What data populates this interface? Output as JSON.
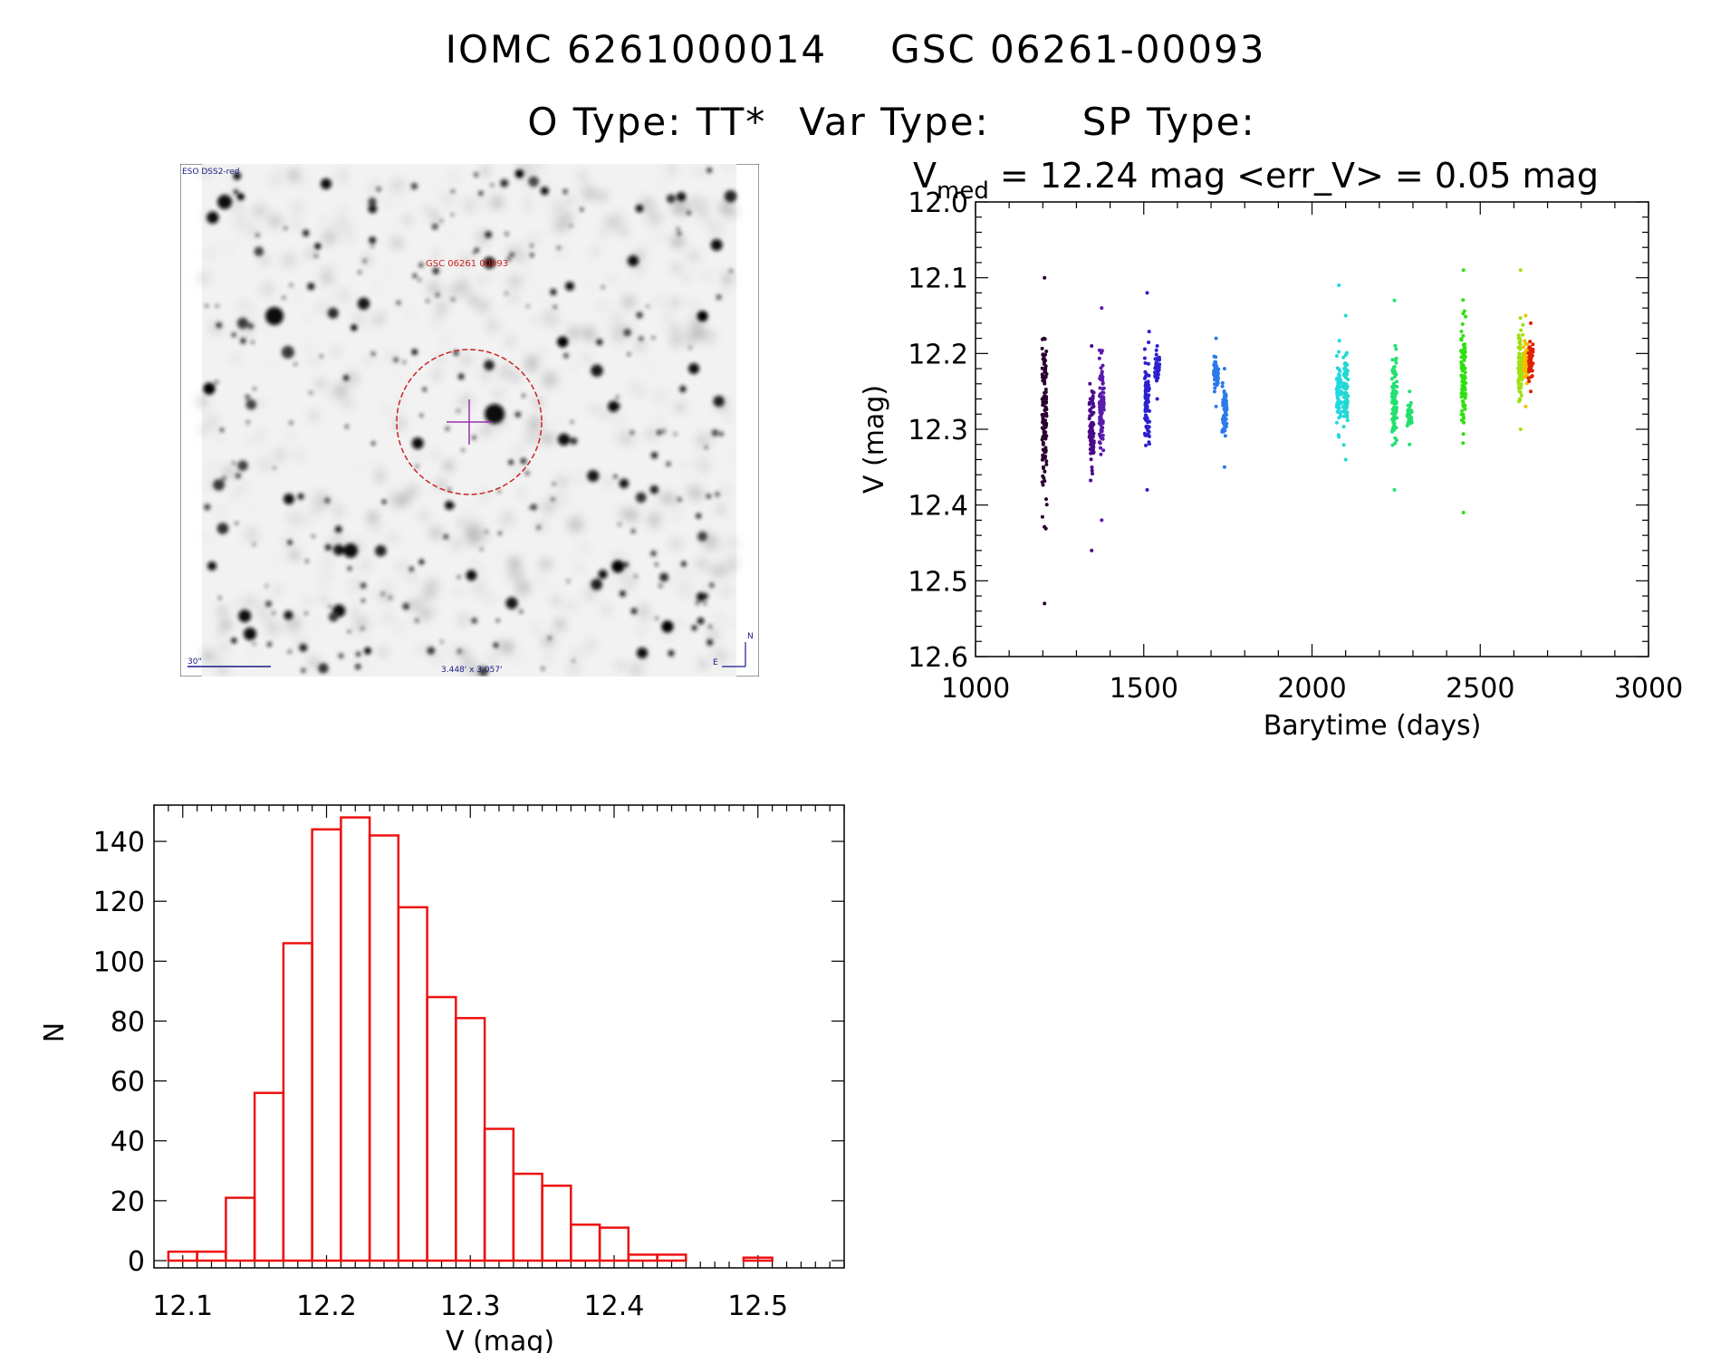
{
  "header": {
    "id1": "IOMC 6261000014",
    "id2": "GSC 06261-00093",
    "otype_label": "O Type: TT*",
    "vartype_label": "Var Type:",
    "sptype_label": "SP Type:"
  },
  "finder_chart": {
    "survey_label": "ESO DSS2-red",
    "target_label": "GSC 06261 00093",
    "scale_label": "30\"",
    "fov_label": "3.448' x 3.057'",
    "north_label": "N",
    "east_label": "E",
    "circle_color": "#cc2222",
    "cross_color": "#9933aa"
  },
  "chart_data": [
    {
      "type": "scatter",
      "title_prefix": "V",
      "title_sub": "med",
      "title_rest": " = 12.24 mag <err_V> = 0.05 mag",
      "xlabel": "Barytime (days)",
      "ylabel": "V (mag)",
      "xlim": [
        1000,
        3000
      ],
      "ylim": [
        12.6,
        12.0
      ],
      "y_inverted": true,
      "xticks": [
        "1000",
        "1500",
        "2000",
        "2500",
        "3000"
      ],
      "yticks": [
        "12.0",
        "12.1",
        "12.2",
        "12.3",
        "12.4",
        "12.5",
        "12.6"
      ],
      "clusters": [
        {
          "x": 1205,
          "color": "#2a0030",
          "ymin": 12.1,
          "ymax": 12.53,
          "center": 12.29
        },
        {
          "x": 1345,
          "color": "#4a0a8a",
          "ymin": 12.19,
          "ymax": 12.46,
          "center": 12.3
        },
        {
          "x": 1375,
          "color": "#5b1aaa",
          "ymin": 12.14,
          "ymax": 12.42,
          "center": 12.27
        },
        {
          "x": 1510,
          "color": "#2a20d0",
          "ymin": 12.12,
          "ymax": 12.38,
          "center": 12.26
        },
        {
          "x": 1540,
          "color": "#2a20d0",
          "ymin": 12.19,
          "ymax": 12.26,
          "center": 12.22
        },
        {
          "x": 1715,
          "color": "#2a7ae8",
          "ymin": 12.18,
          "ymax": 12.27,
          "center": 12.23
        },
        {
          "x": 1740,
          "color": "#2a7ae8",
          "ymin": 12.22,
          "ymax": 12.35,
          "center": 12.28
        },
        {
          "x": 2080,
          "color": "#22d8e0",
          "ymin": 12.11,
          "ymax": 12.31,
          "center": 12.24
        },
        {
          "x": 2100,
          "color": "#22d8d0",
          "ymin": 12.15,
          "ymax": 12.34,
          "center": 12.25
        },
        {
          "x": 2245,
          "color": "#22e070",
          "ymin": 12.13,
          "ymax": 12.38,
          "center": 12.26
        },
        {
          "x": 2290,
          "color": "#22e070",
          "ymin": 12.25,
          "ymax": 12.32,
          "center": 12.28
        },
        {
          "x": 2450,
          "color": "#30e010",
          "ymin": 12.09,
          "ymax": 12.41,
          "center": 12.23
        },
        {
          "x": 2620,
          "color": "#a0e010",
          "ymin": 12.09,
          "ymax": 12.3,
          "center": 12.22
        },
        {
          "x": 2635,
          "color": "#f0c000",
          "ymin": 12.15,
          "ymax": 12.27,
          "center": 12.21
        },
        {
          "x": 2650,
          "color": "#e02000",
          "ymin": 12.16,
          "ymax": 12.25,
          "center": 12.21
        }
      ]
    },
    {
      "type": "bar",
      "xlabel": "V (mag)",
      "ylabel": "N",
      "xlim": [
        12.08,
        12.56
      ],
      "ylim": [
        0,
        150
      ],
      "xticks": [
        "12.1",
        "12.2",
        "12.3",
        "12.4",
        "12.5"
      ],
      "yticks": [
        "0",
        "20",
        "40",
        "60",
        "80",
        "100",
        "120",
        "140"
      ],
      "bar_color": "#ee1111",
      "bin_start": 12.09,
      "bin_width": 0.02,
      "values": [
        3,
        3,
        21,
        56,
        106,
        144,
        148,
        142,
        118,
        88,
        81,
        44,
        29,
        25,
        12,
        11,
        2,
        2,
        0,
        0,
        1
      ]
    }
  ]
}
